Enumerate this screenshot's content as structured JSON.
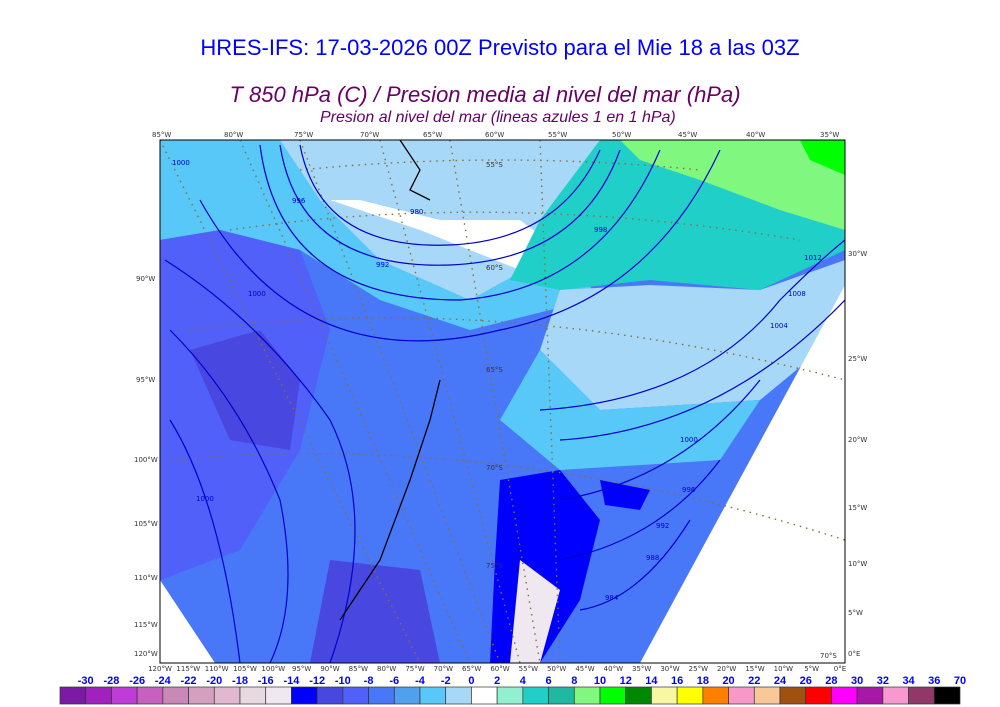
{
  "header": {
    "title": "HRES-IFS: 17-03-2026 00Z Previsto para el Mie 18 a las 03Z",
    "subtitle": "T 850 hPa (C) / Presion media al nivel del mar (hPa)",
    "subtitle2": "Presion al nivel del mar (lineas azules 1 en 1 hPa)"
  },
  "map": {
    "top_lon_labels": [
      "85°W",
      "80°W",
      "75°W",
      "70°W",
      "65°W",
      "60°W",
      "55°W",
      "50°W",
      "45°W",
      "40°W",
      "35°W"
    ],
    "left_lon_labels": [
      "90°W",
      "95°W",
      "100°W",
      "105°W",
      "110°W",
      "115°W",
      "120°W"
    ],
    "right_lon_labels": [
      "30°W",
      "25°W",
      "20°W",
      "15°W",
      "10°W",
      "5°W",
      "0°E"
    ],
    "bottom_lon_labels": [
      "120°W",
      "115°W",
      "110°W",
      "105°W",
      "100°W",
      "95°W",
      "90°W",
      "85°W",
      "80°W",
      "75°W",
      "70°W",
      "65°W",
      "60°W",
      "55°W",
      "50°W",
      "45°W",
      "40°W",
      "35°W",
      "30°W",
      "25°W",
      "20°W",
      "15°W",
      "10°W",
      "5°W",
      "0°E"
    ],
    "lat_labels": [
      "55°S",
      "60°S",
      "65°S",
      "70°S",
      "75°S",
      "70°S"
    ],
    "isobar_labels": [
      "1000",
      "996",
      "980",
      "992",
      "998",
      "1012",
      "1008",
      "1004",
      "1000",
      "1000",
      "996",
      "992",
      "988",
      "984",
      "1000"
    ]
  },
  "colorbar": {
    "labels": [
      "-30",
      "-28",
      "-26",
      "-24",
      "-22",
      "-20",
      "-18",
      "-16",
      "-14",
      "-12",
      "-10",
      "-8",
      "-6",
      "-4",
      "-2",
      "0",
      "2",
      "4",
      "6",
      "8",
      "10",
      "12",
      "14",
      "16",
      "18",
      "20",
      "22",
      "24",
      "26",
      "28",
      "30",
      "32",
      "34",
      "36",
      "70"
    ],
    "colors": [
      "#7a1aa6",
      "#a020c0",
      "#c03cd8",
      "#c860c0",
      "#c888b8",
      "#d4a0c0",
      "#e0b8d0",
      "#e8d8e0",
      "#f0e8f0",
      "#0000ff",
      "#4848e0",
      "#5060f8",
      "#4878f8",
      "#50a0f0",
      "#58c8f8",
      "#a8d8f8",
      "#ffffff",
      "#90f0d0",
      "#20d0c8",
      "#20b8a0",
      "#80f880",
      "#00ff00",
      "#008800",
      "#f8f8a0",
      "#ffff00",
      "#ff8000",
      "#f898c8",
      "#f8c898",
      "#a05010",
      "#ff0000",
      "#ff00ff",
      "#a818a8",
      "#f898d0",
      "#903868",
      "#000000"
    ]
  }
}
